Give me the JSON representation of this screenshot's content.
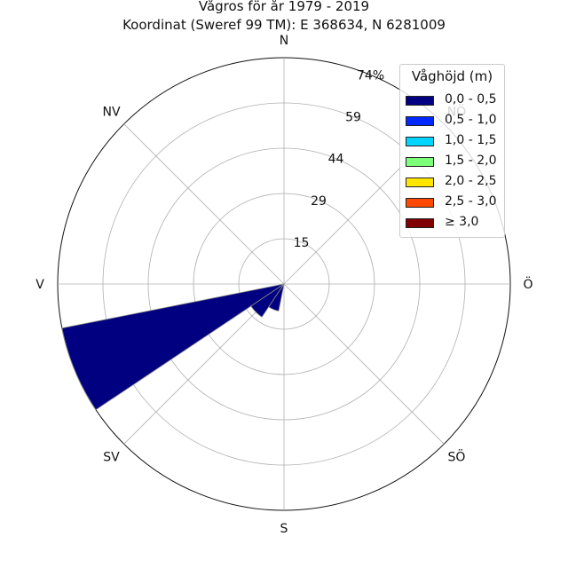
{
  "chart_data": {
    "type": "wind-rose",
    "title": "Vågros för år 1979 - 2019",
    "subtitle": "Koordinat (Sweref 99 TM): E 368634, N 6281009",
    "directions": [
      "N",
      "NÖ",
      "Ö",
      "SÖ",
      "S",
      "SV",
      "V",
      "NV"
    ],
    "direction_labels": [
      "N",
      "NÖ",
      "Ö",
      "SÖ",
      "S",
      "SV",
      "V",
      "NV"
    ],
    "radial_ticks": [
      "15",
      "29",
      "44",
      "59",
      "74%"
    ],
    "radial_tick_values": [
      14.8,
      29.6,
      44.4,
      59.2,
      74.0
    ],
    "radial_max": 74,
    "grid": true,
    "legend": {
      "title": "Våghöjd (m)",
      "placement": "top-right",
      "items": [
        {
          "label": "0,0 - 0,5",
          "color": "#000080"
        },
        {
          "label": "0,5 - 1,0",
          "color": "#0028ff"
        },
        {
          "label": "1,0 - 1,5",
          "color": "#00d4ff"
        },
        {
          "label": "1,5 - 2,0",
          "color": "#7dff7a"
        },
        {
          "label": "2,0 - 2,5",
          "color": "#ffe600"
        },
        {
          "label": "2,5 - 3,0",
          "color": "#ff4800"
        },
        {
          "label": "≥ 3,0",
          "color": "#800000"
        }
      ]
    },
    "sectors": [
      {
        "direction_deg": 247.5,
        "bin": "0,0 - 0,5",
        "value": 74
      },
      {
        "direction_deg": 225,
        "bin": "0,0 - 0,5",
        "value": 13
      },
      {
        "direction_deg": 202.5,
        "bin": "0,0 - 0,5",
        "value": 9
      }
    ]
  }
}
